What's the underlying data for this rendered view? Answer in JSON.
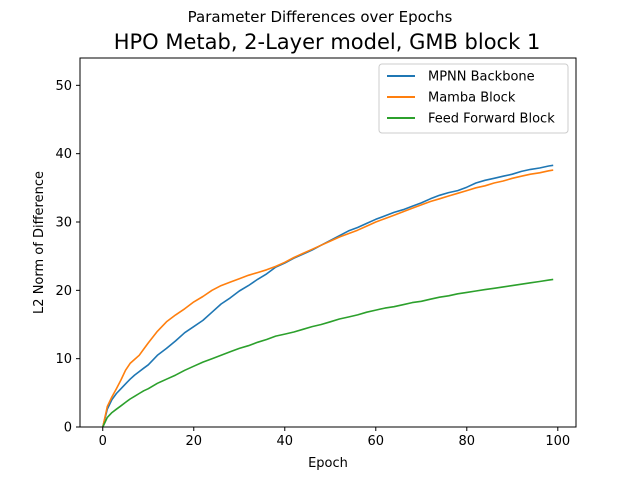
{
  "chart_data": {
    "type": "line",
    "suptitle": "Parameter Differences over Epochs",
    "title": "HPO Metab, 2-Layer model, GMB block 1",
    "xlabel": "Epoch",
    "ylabel": "L2 Norm of Difference",
    "xlim": [
      -5,
      104
    ],
    "ylim": [
      0,
      54
    ],
    "xticks": [
      0,
      20,
      40,
      60,
      80,
      100
    ],
    "yticks": [
      0,
      10,
      20,
      30,
      40,
      50
    ],
    "grid": false,
    "legend_position": "upper-right",
    "x": [
      0,
      1,
      2,
      3,
      4,
      5,
      6,
      7,
      8,
      9,
      10,
      12,
      14,
      16,
      18,
      20,
      22,
      24,
      26,
      28,
      30,
      32,
      34,
      36,
      38,
      40,
      42,
      44,
      46,
      48,
      50,
      52,
      54,
      56,
      58,
      60,
      62,
      64,
      66,
      68,
      70,
      72,
      74,
      76,
      78,
      80,
      82,
      84,
      86,
      88,
      90,
      92,
      94,
      96,
      98,
      99
    ],
    "series": [
      {
        "name": "MPNN Backbone",
        "color": "#1f77b4",
        "values": [
          0,
          2.6,
          4.0,
          4.9,
          5.6,
          6.3,
          7.0,
          7.6,
          8.1,
          8.6,
          9.1,
          10.5,
          11.5,
          12.6,
          13.8,
          14.7,
          15.6,
          16.8,
          18.0,
          18.9,
          19.9,
          20.7,
          21.6,
          22.4,
          23.4,
          24.0,
          24.7,
          25.3,
          25.9,
          26.6,
          27.3,
          28.0,
          28.7,
          29.2,
          29.8,
          30.4,
          30.9,
          31.4,
          31.8,
          32.3,
          32.8,
          33.4,
          33.9,
          34.3,
          34.6,
          35.1,
          35.7,
          36.1,
          36.4,
          36.7,
          37.0,
          37.4,
          37.7,
          37.9,
          38.2,
          38.3
        ]
      },
      {
        "name": "Mamba Block",
        "color": "#ff7f0e",
        "values": [
          0,
          3.0,
          4.4,
          5.6,
          6.9,
          8.3,
          9.3,
          9.9,
          10.5,
          11.4,
          12.3,
          14.0,
          15.4,
          16.4,
          17.3,
          18.3,
          19.1,
          20.0,
          20.7,
          21.2,
          21.7,
          22.2,
          22.6,
          23.0,
          23.5,
          24.1,
          24.8,
          25.4,
          26.0,
          26.6,
          27.2,
          27.8,
          28.3,
          28.8,
          29.4,
          30.0,
          30.5,
          31.0,
          31.5,
          32.0,
          32.5,
          33.0,
          33.4,
          33.8,
          34.2,
          34.6,
          35.0,
          35.3,
          35.7,
          36.0,
          36.4,
          36.7,
          37.0,
          37.2,
          37.5,
          37.6
        ]
      },
      {
        "name": "Feed Forward Block",
        "color": "#2ca02c",
        "values": [
          0,
          1.4,
          2.1,
          2.6,
          3.1,
          3.6,
          4.1,
          4.5,
          4.9,
          5.3,
          5.6,
          6.4,
          7.0,
          7.6,
          8.3,
          8.9,
          9.5,
          10.0,
          10.5,
          11.0,
          11.5,
          11.9,
          12.4,
          12.8,
          13.3,
          13.6,
          13.9,
          14.3,
          14.7,
          15.0,
          15.4,
          15.8,
          16.1,
          16.4,
          16.8,
          17.1,
          17.4,
          17.6,
          17.9,
          18.2,
          18.4,
          18.7,
          19.0,
          19.2,
          19.5,
          19.7,
          19.9,
          20.1,
          20.3,
          20.5,
          20.7,
          20.9,
          21.1,
          21.3,
          21.5,
          21.6
        ]
      }
    ]
  }
}
